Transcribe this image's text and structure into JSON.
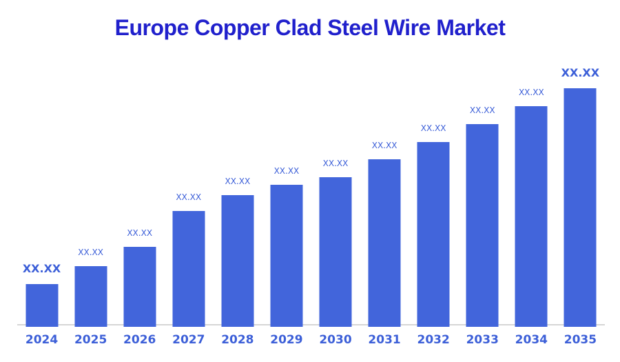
{
  "chart": {
    "title": "Europe Copper Clad Steel Wire Market"
  },
  "chart_data": {
    "type": "bar",
    "title": "Europe Copper Clad Steel Wire Market",
    "xlabel": "",
    "ylabel": "",
    "grid": false,
    "legend": false,
    "y_axis_shown": false,
    "values_masked": true,
    "categories": [
      "2024",
      "2025",
      "2026",
      "2027",
      "2028",
      "2029",
      "2030",
      "2031",
      "2032",
      "2033",
      "2034",
      "2035"
    ],
    "value_labels": [
      "XX.XX",
      "XX.XX",
      "XX.XX",
      "XX.XX",
      "XX.XX",
      "XX.XX",
      "XX.XX",
      "XX.XX",
      "XX.XX",
      "XX.XX",
      "XX.XX",
      "XX.XX"
    ],
    "relative_heights": [
      0.18,
      0.255,
      0.335,
      0.486,
      0.553,
      0.595,
      0.628,
      0.701,
      0.775,
      0.85,
      0.924,
      1.0
    ],
    "emphasized_labels": [
      "2024",
      "2035"
    ],
    "colors": {
      "bar": "#4265DB",
      "title": "#2020CC",
      "label": "#3C5FD8",
      "axis_line": "#D6D6D6"
    }
  }
}
